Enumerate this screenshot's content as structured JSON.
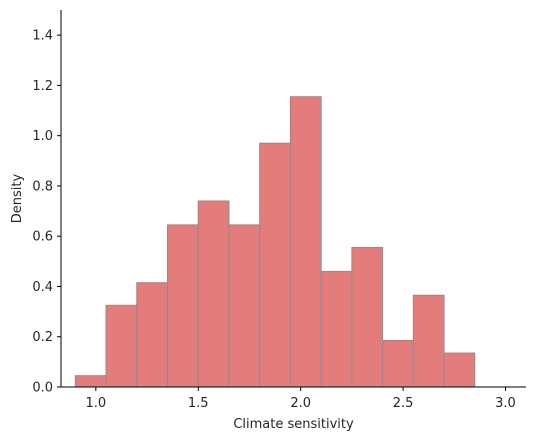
{
  "chart_data": {
    "type": "bar",
    "title": "",
    "xlabel": "Climate sensitivity",
    "ylabel": "Density",
    "xlim": [
      0.83,
      3.1
    ],
    "ylim": [
      0,
      1.5
    ],
    "xticks": [
      1.0,
      1.5,
      2.0,
      2.5,
      3.0
    ],
    "xtick_labels": [
      "1.0",
      "1.5",
      "2.0",
      "2.5",
      "3.0"
    ],
    "yticks": [
      0.0,
      0.2,
      0.4,
      0.6,
      0.8,
      1.0,
      1.2,
      1.4
    ],
    "ytick_labels": [
      "0.0",
      "0.2",
      "0.4",
      "0.6",
      "0.8",
      "1.0",
      "1.2",
      "1.4"
    ],
    "bin_edges": [
      0.9,
      1.05,
      1.2,
      1.35,
      1.5,
      1.65,
      1.8,
      1.95,
      2.1,
      2.25,
      2.4,
      2.55,
      2.7,
      2.85
    ],
    "values": [
      0.045,
      0.325,
      0.415,
      0.645,
      0.74,
      0.645,
      0.97,
      1.155,
      0.46,
      0.555,
      0.185,
      0.365,
      0.135
    ],
    "bar_color": "#e57c7c",
    "edge_color": "#8c8c8c",
    "grid": false,
    "legend": "none"
  }
}
